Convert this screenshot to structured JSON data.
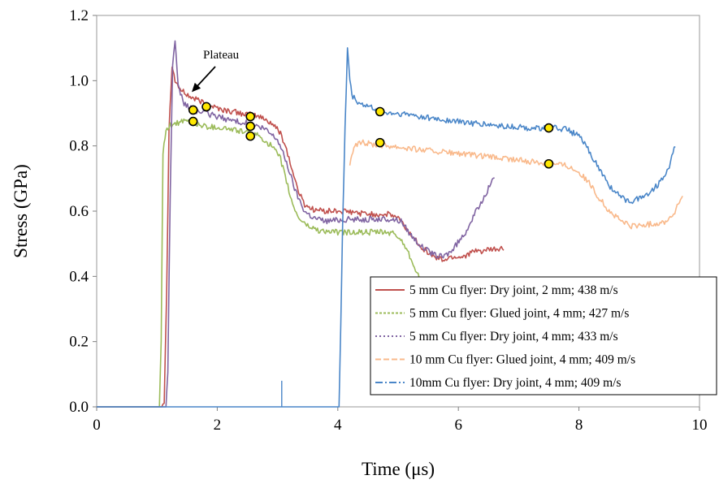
{
  "chart_data": {
    "type": "line",
    "title": "",
    "xlabel": "Time (μs)",
    "ylabel": "Stress (GPa)",
    "xlim": [
      0,
      10
    ],
    "ylim": [
      0,
      1.2
    ],
    "xticks": [
      0,
      2,
      4,
      6,
      8,
      10
    ],
    "xtick_labels": [
      "0",
      "2",
      "4",
      "6",
      "8",
      "10"
    ],
    "yticks": [
      0,
      0.2,
      0.4,
      0.6,
      0.8,
      1.0,
      1.2
    ],
    "ytick_labels": [
      "0.0",
      "0.2",
      "0.4",
      "0.6",
      "0.8",
      "1.0",
      "1.2"
    ],
    "grid": false,
    "legend_position": "lower-right",
    "annotation": {
      "text": "Plateau",
      "points_to": [
        1.55,
        0.96
      ]
    },
    "series": [
      {
        "name": "5 mm Cu flyer: Dry joint, 2 mm; 438 m/s",
        "color": "#c0504d",
        "dash": "solid",
        "x": [
          0,
          1.08,
          1.12,
          1.16,
          1.2,
          1.25,
          1.3,
          1.4,
          1.55,
          1.8,
          2.1,
          2.4,
          2.7,
          2.9,
          3.05,
          3.15,
          3.25,
          3.35,
          3.45,
          3.6,
          3.8,
          4.0,
          4.3,
          4.6,
          4.85,
          5.0,
          5.2,
          5.45,
          5.6,
          5.75,
          5.9,
          6.05,
          6.25,
          6.5,
          6.75
        ],
        "y": [
          0,
          0,
          0.02,
          0.35,
          0.85,
          1.05,
          1.0,
          0.97,
          0.95,
          0.93,
          0.91,
          0.9,
          0.89,
          0.87,
          0.84,
          0.79,
          0.72,
          0.66,
          0.62,
          0.605,
          0.6,
          0.6,
          0.595,
          0.59,
          0.59,
          0.58,
          0.53,
          0.48,
          0.46,
          0.45,
          0.46,
          0.46,
          0.475,
          0.48,
          0.485
        ]
      },
      {
        "name": "5 mm Cu flyer: Glued joint, 4 mm; 427 m/s",
        "color": "#9bbb59",
        "dash": "2,2",
        "x": [
          0,
          1.04,
          1.07,
          1.1,
          1.15,
          1.2,
          1.3,
          1.5,
          1.8,
          2.1,
          2.4,
          2.7,
          2.9,
          3.05,
          3.15,
          3.25,
          3.35,
          3.5,
          3.7,
          4.0,
          4.3,
          4.6,
          4.8,
          4.95,
          5.1,
          5.25,
          5.35
        ],
        "y": [
          0,
          0,
          0.2,
          0.78,
          0.84,
          0.86,
          0.87,
          0.875,
          0.86,
          0.855,
          0.845,
          0.83,
          0.8,
          0.76,
          0.69,
          0.62,
          0.58,
          0.555,
          0.54,
          0.535,
          0.535,
          0.535,
          0.535,
          0.53,
          0.5,
          0.44,
          0.4
        ]
      },
      {
        "name": "5 mm Cu flyer: Dry joint, 4 mm; 433 m/s",
        "color": "#8064a2",
        "dash": "1,3",
        "x": [
          0,
          1.15,
          1.18,
          1.22,
          1.26,
          1.3,
          1.35,
          1.45,
          1.6,
          1.9,
          2.2,
          2.5,
          2.8,
          3.0,
          3.15,
          3.3,
          3.45,
          3.6,
          3.8,
          4.1,
          4.4,
          4.7,
          4.9,
          5.05,
          5.2,
          5.4,
          5.6,
          5.75,
          5.9,
          6.1,
          6.3,
          6.5,
          6.6
        ],
        "y": [
          0,
          0,
          0.1,
          0.65,
          1.05,
          1.12,
          0.98,
          0.93,
          0.91,
          0.895,
          0.88,
          0.87,
          0.85,
          0.82,
          0.75,
          0.66,
          0.6,
          0.58,
          0.57,
          0.575,
          0.575,
          0.575,
          0.575,
          0.57,
          0.53,
          0.49,
          0.465,
          0.46,
          0.48,
          0.53,
          0.6,
          0.67,
          0.71
        ]
      },
      {
        "name": "10 mm Cu flyer: Glued joint, 4 mm; 409 m/s",
        "color": "#f9b98b",
        "dash": "8,4",
        "x": [
          4.2,
          4.25,
          4.3,
          4.4,
          4.6,
          4.9,
          5.3,
          5.8,
          6.3,
          6.8,
          7.3,
          7.6,
          7.8,
          8.0,
          8.15,
          8.3,
          8.5,
          8.7,
          8.85,
          9.0,
          9.2,
          9.4,
          9.55,
          9.65,
          9.72
        ],
        "y": [
          0.74,
          0.78,
          0.8,
          0.81,
          0.805,
          0.8,
          0.79,
          0.78,
          0.77,
          0.76,
          0.75,
          0.745,
          0.74,
          0.72,
          0.69,
          0.65,
          0.6,
          0.57,
          0.555,
          0.555,
          0.56,
          0.565,
          0.585,
          0.62,
          0.65
        ]
      },
      {
        "name": "10mm Cu flyer: Dry joint, 4 mm; 409 m/s",
        "color": "#4a86c8",
        "dash": "10,4,2,4",
        "x": [
          0,
          4.02,
          4.05,
          4.08,
          4.12,
          4.16,
          4.2,
          4.25,
          4.35,
          4.5,
          4.8,
          5.2,
          5.7,
          6.2,
          6.7,
          7.2,
          7.6,
          7.8,
          8.0,
          8.15,
          8.3,
          8.5,
          8.7,
          8.85,
          9.0,
          9.2,
          9.35,
          9.5,
          9.6
        ],
        "y": [
          0,
          0,
          0.25,
          0.55,
          0.85,
          1.1,
          1.0,
          0.95,
          0.93,
          0.92,
          0.9,
          0.895,
          0.88,
          0.87,
          0.86,
          0.855,
          0.855,
          0.85,
          0.83,
          0.79,
          0.74,
          0.68,
          0.64,
          0.63,
          0.64,
          0.66,
          0.69,
          0.74,
          0.8
        ]
      }
    ],
    "spikes": [
      {
        "x": 3.07,
        "y": 0.08,
        "color": "#4a86c8"
      }
    ],
    "markers": [
      {
        "x": 1.6,
        "y": 0.91
      },
      {
        "x": 1.82,
        "y": 0.92
      },
      {
        "x": 1.6,
        "y": 0.875
      },
      {
        "x": 2.55,
        "y": 0.89
      },
      {
        "x": 2.55,
        "y": 0.86
      },
      {
        "x": 2.55,
        "y": 0.83
      },
      {
        "x": 4.7,
        "y": 0.905
      },
      {
        "x": 7.5,
        "y": 0.855
      },
      {
        "x": 4.7,
        "y": 0.81
      },
      {
        "x": 7.5,
        "y": 0.745
      }
    ],
    "marker_style": {
      "fill": "#ffe800",
      "stroke": "#000000"
    }
  }
}
